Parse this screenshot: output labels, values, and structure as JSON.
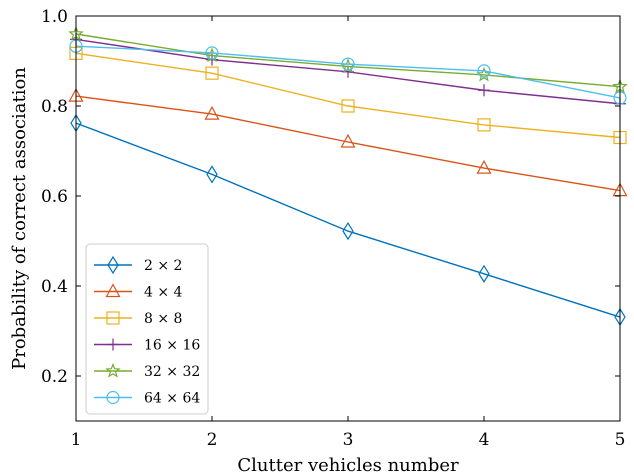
{
  "chart_data": {
    "type": "line",
    "xlabel": "Clutter vehicles number",
    "ylabel": "Probability of correct association",
    "x": [
      1,
      2,
      3,
      4,
      5
    ],
    "xlim": [
      1,
      5
    ],
    "ylim": [
      0.1,
      1.0
    ],
    "xticks": [
      "1",
      "2",
      "3",
      "4",
      "5"
    ],
    "yticks": [
      0.2,
      0.4,
      0.6,
      0.8,
      1.0
    ],
    "ytick_labels": [
      "0.2",
      "0.4",
      "0.6",
      "0.8",
      "1.0"
    ],
    "grid": false,
    "legend_position": "lower-left",
    "series": [
      {
        "name": "2 × 2",
        "color": "#0072bd",
        "marker": "diamond",
        "values": [
          0.762,
          0.648,
          0.522,
          0.427,
          0.331
        ]
      },
      {
        "name": "4 × 4",
        "color": "#d95319",
        "marker": "triangle",
        "values": [
          0.822,
          0.782,
          0.72,
          0.662,
          0.612
        ]
      },
      {
        "name": "8 × 8",
        "color": "#edb120",
        "marker": "square",
        "values": [
          0.917,
          0.873,
          0.8,
          0.758,
          0.73
        ]
      },
      {
        "name": "16 × 16",
        "color": "#7e2f8e",
        "marker": "plus",
        "values": [
          0.948,
          0.903,
          0.876,
          0.835,
          0.805
        ]
      },
      {
        "name": "32 × 32",
        "color": "#77ac30",
        "marker": "star",
        "values": [
          0.96,
          0.912,
          0.888,
          0.869,
          0.843
        ]
      },
      {
        "name": "64 × 64",
        "color": "#4dbeee",
        "marker": "circle",
        "values": [
          0.933,
          0.918,
          0.893,
          0.878,
          0.818
        ]
      }
    ]
  }
}
